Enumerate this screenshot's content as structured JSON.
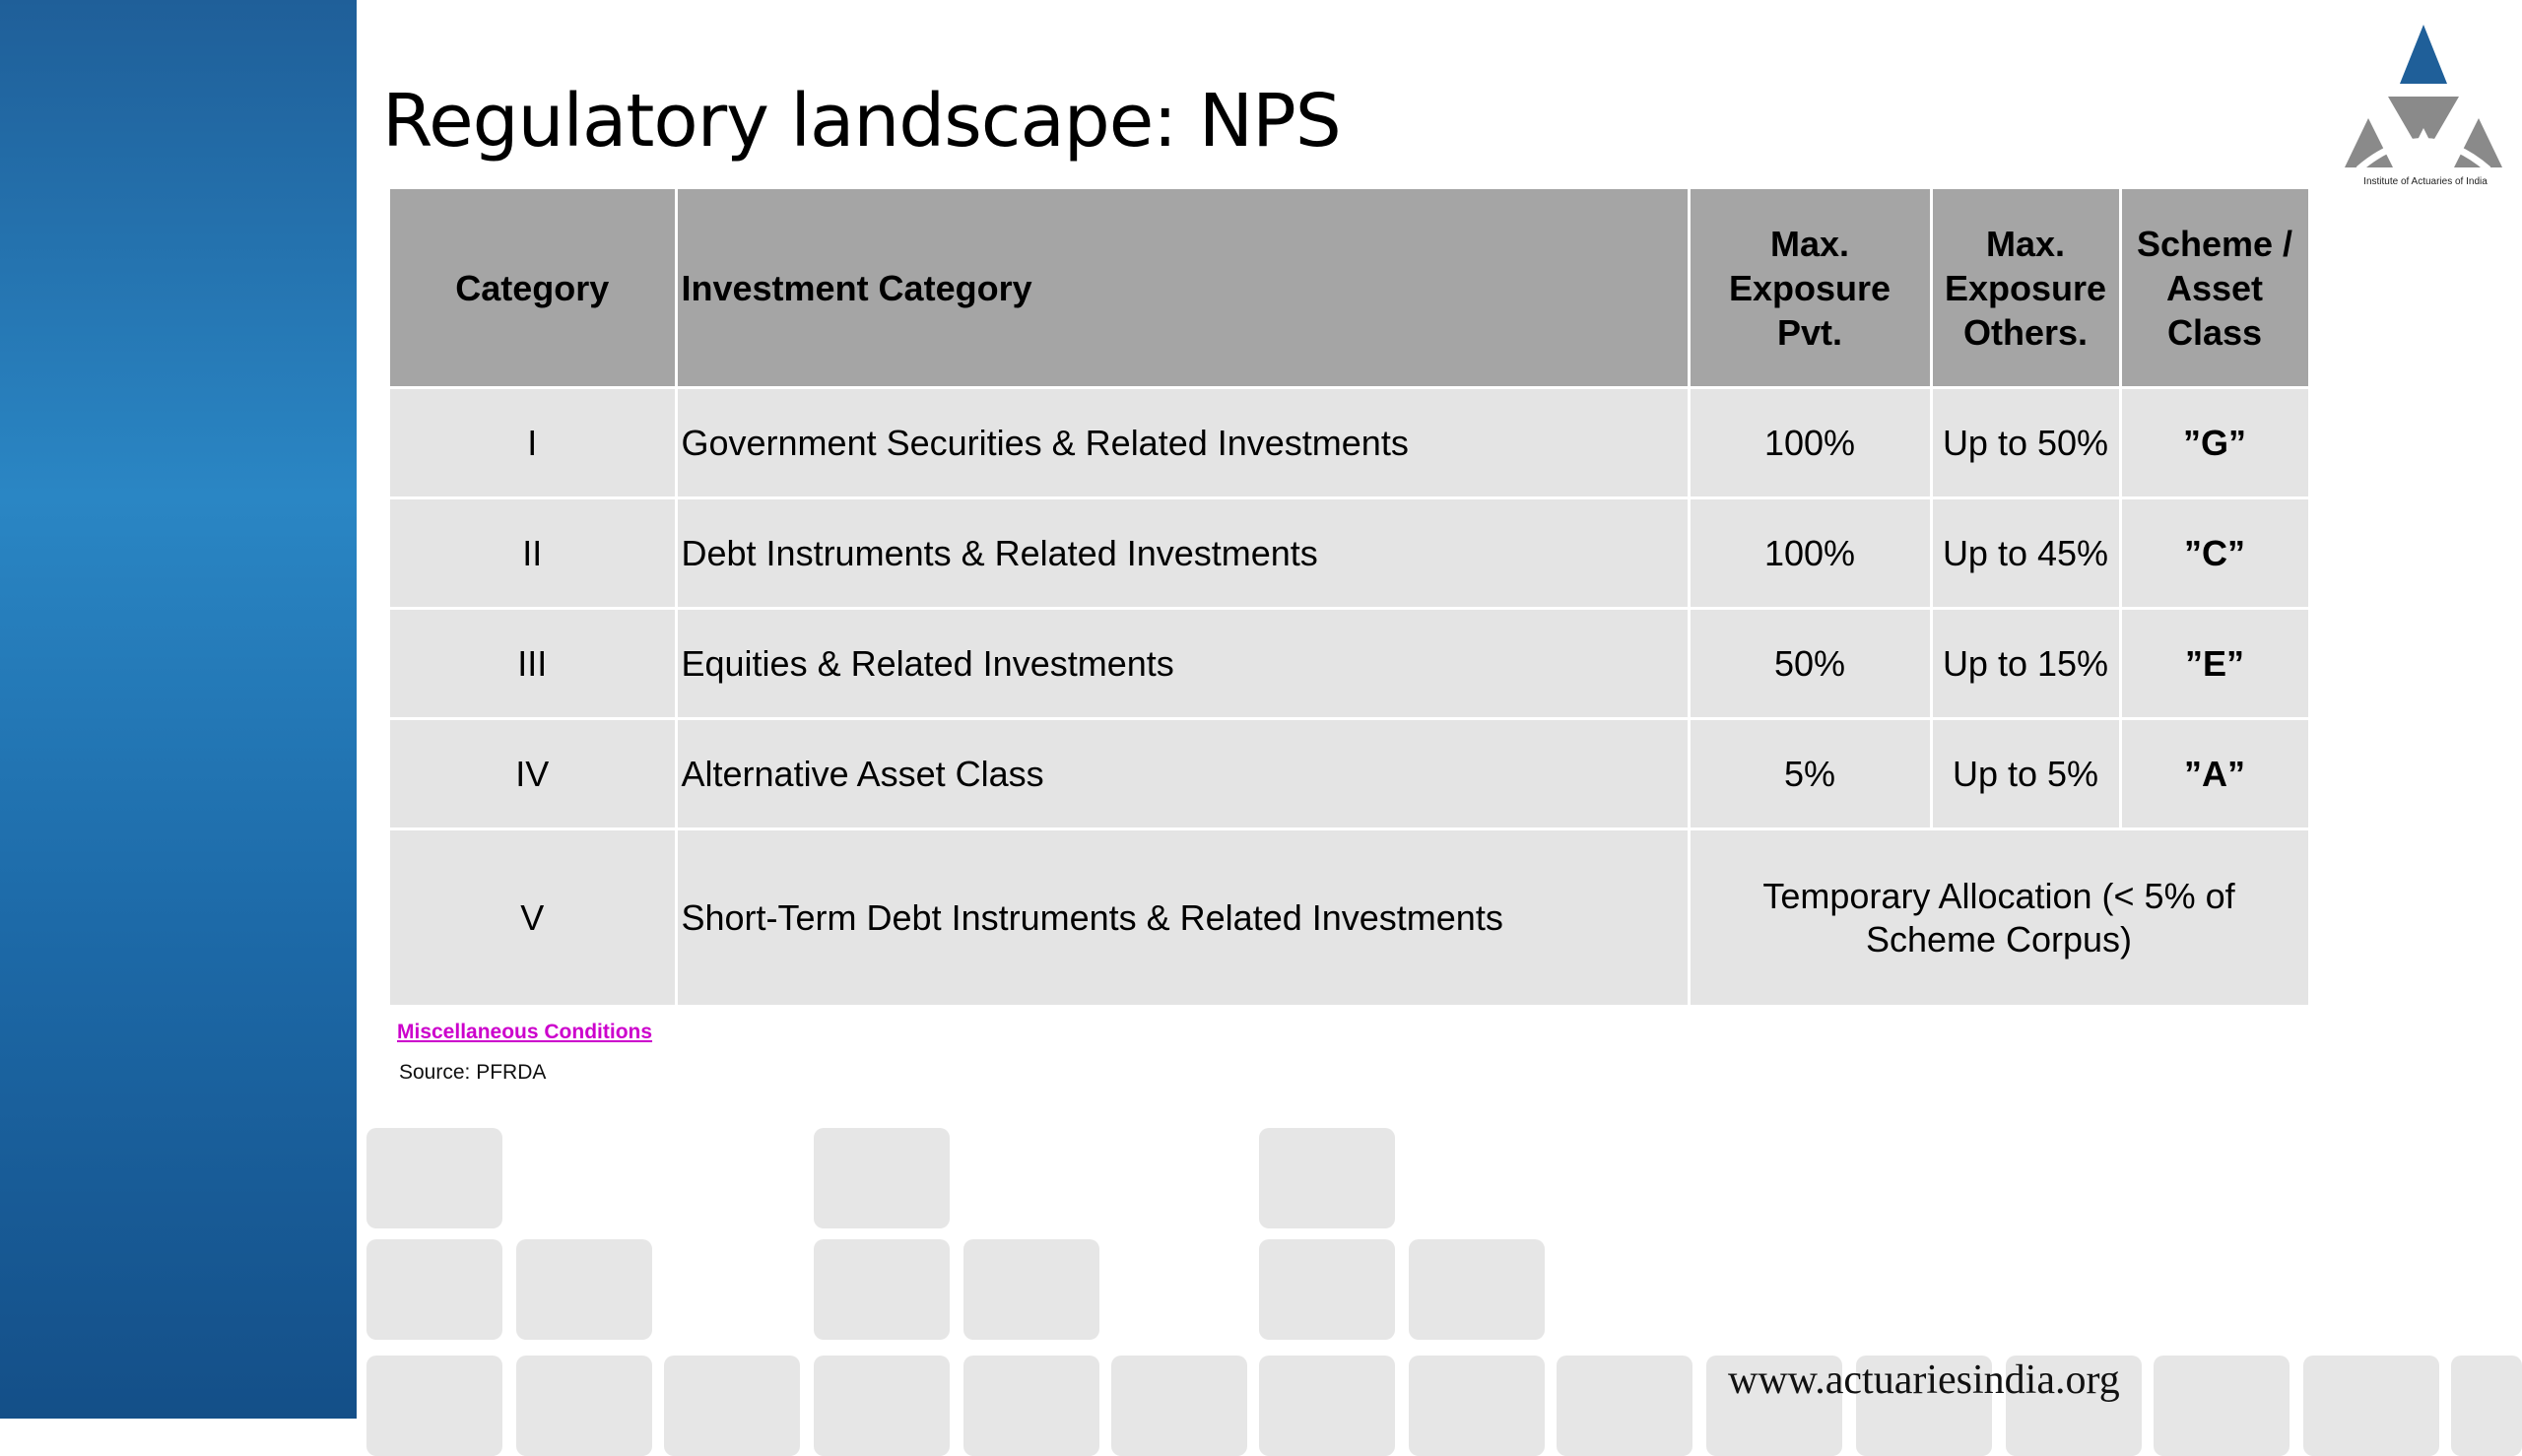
{
  "slide": {
    "title": "Regulatory landscape: NPS",
    "logo_caption": "Institute of Actuaries of India",
    "footer_url": "www.actuariesindia.org",
    "misc_link": "Miscellaneous Conditions",
    "source": "Source: PFRDA"
  },
  "table": {
    "headers": {
      "category": "Category",
      "investment": "Investment Category",
      "max_pvt": "Max. Exposure Pvt.",
      "max_others": "Max. Exposure Others.",
      "scheme": "Scheme / Asset Class"
    },
    "rows": [
      {
        "category": "I",
        "investment": "Government Securities & Related Investments",
        "max_pvt": "100%",
        "max_others": "Up to 50%",
        "scheme": "”G”"
      },
      {
        "category": "II",
        "investment": "Debt Instruments & Related Investments",
        "max_pvt": "100%",
        "max_others": "Up to 45%",
        "scheme": "”C”"
      },
      {
        "category": "III",
        "investment": "Equities & Related Investments",
        "max_pvt": "50%",
        "max_others": "Up to 15%",
        "scheme": "”E”"
      },
      {
        "category": "IV",
        "investment": "Alternative Asset Class",
        "max_pvt": "5%",
        "max_others": "Up to 5%",
        "scheme": "”A”"
      }
    ],
    "last_row": {
      "category": "V",
      "investment": "Short-Term Debt Instruments & Related Investments",
      "allocation": "Temporary Allocation (< 5% of Scheme Corpus)"
    }
  },
  "colors": {
    "sidebar": "#1f6aa8",
    "header_bg": "#a5a5a5",
    "cell_bg": "#e4e4e4",
    "link": "#cc00cc",
    "logo_blue": "#1f5f99",
    "logo_gray": "#8a8a8a"
  }
}
